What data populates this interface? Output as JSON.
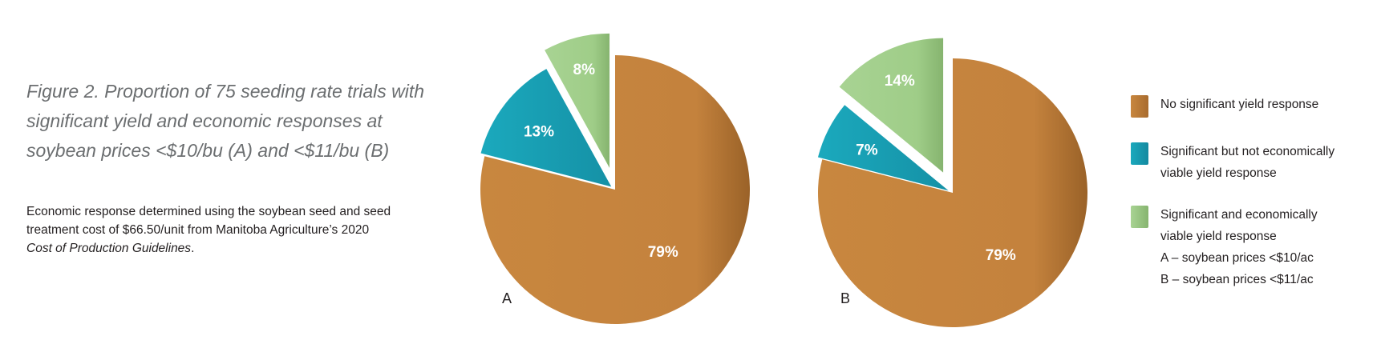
{
  "title_lines": [
    "Figure 2. Proportion of 75 seeding rate trials with",
    "significant yield and economic responses at",
    "soybean prices <$10/bu (A) and <$11/bu (B)"
  ],
  "note": {
    "line1": "Economic response determined using the soybean seed and seed",
    "line2": "treatment cost of $66.50/unit from Manitoba Agriculture’s 2020",
    "line3_italic": "Cost of Production Guidelines",
    "line3_tail": "."
  },
  "legend": [
    {
      "color": "#c4823d",
      "lines": [
        "No significant yield response"
      ]
    },
    {
      "color": "#1aa3b8",
      "lines": [
        "Significant but not economically",
        "viable yield response"
      ]
    },
    {
      "color": "#9fcd88",
      "lines": [
        "Significant and economically",
        "viable yield response",
        "A – soybean prices <$10/ac",
        "B – soybean prices <$11/ac"
      ]
    }
  ],
  "chart_data": [
    {
      "type": "pie",
      "label": "A",
      "slices": [
        {
          "name": "No significant yield response",
          "value": 79,
          "label": "79%",
          "color": "#c4823d",
          "exploded": false
        },
        {
          "name": "Significant but not economically viable yield response",
          "value": 13,
          "label": "13%",
          "color": "#1aa3b8",
          "exploded": true
        },
        {
          "name": "Significant and economically viable yield response",
          "value": 8,
          "label": "8%",
          "color": "#9fcd88",
          "exploded": true
        }
      ]
    },
    {
      "type": "pie",
      "label": "B",
      "slices": [
        {
          "name": "No significant yield response",
          "value": 79,
          "label": "79%",
          "color": "#c4823d",
          "exploded": false
        },
        {
          "name": "Significant but not economically viable yield response",
          "value": 7,
          "label": "7%",
          "color": "#1aa3b8",
          "exploded": true
        },
        {
          "name": "Significant and economically viable yield response",
          "value": 14,
          "label": "14%",
          "color": "#9fcd88",
          "exploded": true
        }
      ]
    }
  ]
}
